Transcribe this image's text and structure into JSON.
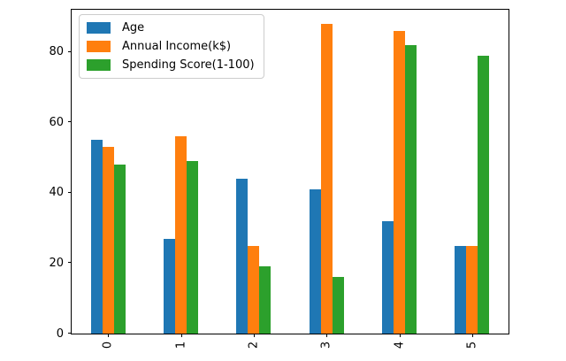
{
  "figure": {
    "background": "#ffffff",
    "plot_border_color": "#000000"
  },
  "chart_data": {
    "type": "bar",
    "title": "",
    "xlabel": "",
    "ylabel": "",
    "categories": [
      "0",
      "1",
      "2",
      "3",
      "4",
      "5"
    ],
    "series": [
      {
        "name": "Age",
        "color": "#1f77b4",
        "values": [
          55,
          27,
          44,
          41,
          32,
          25
        ]
      },
      {
        "name": "Annual Income(k$)",
        "color": "#ff7f0e",
        "values": [
          53,
          56,
          25,
          88,
          86,
          25
        ]
      },
      {
        "name": "Spending Score(1-100)",
        "color": "#2ca02c",
        "values": [
          48,
          49,
          19,
          16,
          82,
          79
        ]
      }
    ],
    "ylim": [
      0,
      92
    ],
    "yticks": [
      0,
      20,
      40,
      60,
      80
    ],
    "xtick_rotation": 90,
    "grid": false,
    "legend_position": "upper left"
  }
}
